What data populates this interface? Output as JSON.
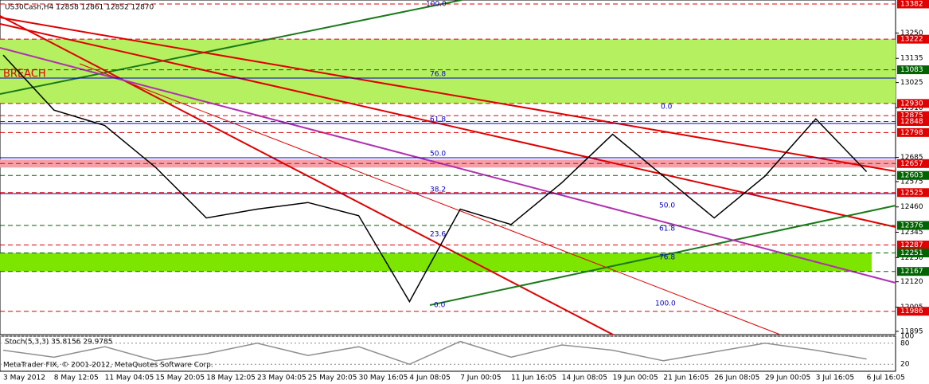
{
  "chart_data": [
    {
      "type": "line",
      "title": "US30Cash,H4 12858 12861 12852 12870",
      "note": "BREACH",
      "categories": [
        "3 May 2012",
        "8 May 12:05",
        "11 May 04:05",
        "15 May 20:05",
        "18 May 12:05",
        "23 May 04:05",
        "25 May 20:05",
        "30 May 16:05",
        "4 Jun 08:05",
        "7 Jun 00:05",
        "11 Jun 16:05",
        "14 Jun 08:05",
        "19 Jun 00:05",
        "21 Jun 16:05",
        "26 Jun 08:05",
        "29 Jun 00:05",
        "3 Jul 16:05",
        "6 Jul 16:05"
      ],
      "values": [
        13150,
        12900,
        12830,
        12640,
        12410,
        12450,
        12480,
        12420,
        12030,
        12450,
        12380,
        12570,
        12790,
        12600,
        12410,
        12600,
        12860,
        12620
      ],
      "color": "#000000",
      "ylim": [
        11880,
        13400
      ],
      "yticks": [
        13250,
        13135,
        13025,
        12910,
        12685,
        12575,
        12460,
        12345,
        12230,
        12120,
        12005,
        11895
      ],
      "levels": [
        {
          "value": 13382,
          "color": "#e00000"
        },
        {
          "value": 13222,
          "color": "#e00000"
        },
        {
          "value": 13083,
          "color": "#006400"
        },
        {
          "value": 12930,
          "color": "#e00000"
        },
        {
          "value": 12875,
          "color": "#e00000"
        },
        {
          "value": 12848,
          "color": "#e00000"
        },
        {
          "value": 12798,
          "color": "#e00000"
        },
        {
          "value": 12657,
          "color": "#e00000"
        },
        {
          "value": 12603,
          "color": "#006400"
        },
        {
          "value": 12525,
          "color": "#e00000"
        },
        {
          "value": 12376,
          "color": "#006400"
        },
        {
          "value": 12287,
          "color": "#e00000"
        },
        {
          "value": 12251,
          "color": "#006400"
        },
        {
          "value": 12167,
          "color": "#006400"
        },
        {
          "value": 11986,
          "color": "#e00000"
        }
      ],
      "annotations": [
        "100.0",
        "76.8",
        "61.8",
        "50.0",
        "38.2",
        "23.6",
        "0.0",
        "0.0",
        "50.0",
        "61.8",
        "76.8",
        "100.0"
      ]
    },
    {
      "type": "line",
      "title": "Stoch(5,3,3) 35.8156 29.9785",
      "values": [
        60,
        40,
        70,
        30,
        50,
        80,
        45,
        70,
        20,
        85,
        40,
        75,
        60,
        30,
        55,
        80,
        60,
        35
      ],
      "color": "#909090",
      "ylim": [
        0,
        100
      ],
      "yticks": [
        100,
        80,
        20
      ]
    }
  ],
  "footer": "MetaTrader FIX, © 2001-2012, MetaQuotes Software Corp."
}
